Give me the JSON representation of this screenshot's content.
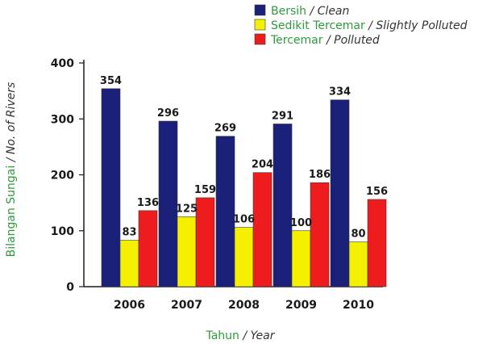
{
  "chart_data": {
    "type": "bar",
    "categories": [
      "2006",
      "2007",
      "2008",
      "2009",
      "2010"
    ],
    "series": [
      {
        "name_ms": "Bersih",
        "name_en": "Clean",
        "color": "#1a1f7a",
        "values": [
          354,
          296,
          269,
          291,
          334
        ]
      },
      {
        "name_ms": "Sedikit Tercemar",
        "name_en": "Slightly Polluted",
        "color": "#f5f000",
        "values": [
          83,
          125,
          106,
          100,
          80
        ]
      },
      {
        "name_ms": "Tercemar",
        "name_en": "Polluted",
        "color": "#ee1c1c",
        "values": [
          136,
          159,
          204,
          186,
          156
        ]
      }
    ],
    "data_labels": [
      [
        "354",
        "296",
        "269",
        "291",
        "334"
      ],
      [
        "83",
        "125",
        "106",
        "100",
        "80"
      ],
      [
        "136",
        "159",
        "204",
        "186",
        "156"
      ]
    ],
    "ylim": [
      0,
      400
    ],
    "yticks": [
      0,
      100,
      200,
      300,
      400
    ],
    "xlabel_ms": "Tahun",
    "xlabel_en": "Year",
    "ylabel_ms": "Bilangan Sungai",
    "ylabel_en": "No. of Rivers",
    "legend_position": "top-right",
    "grid": false
  }
}
